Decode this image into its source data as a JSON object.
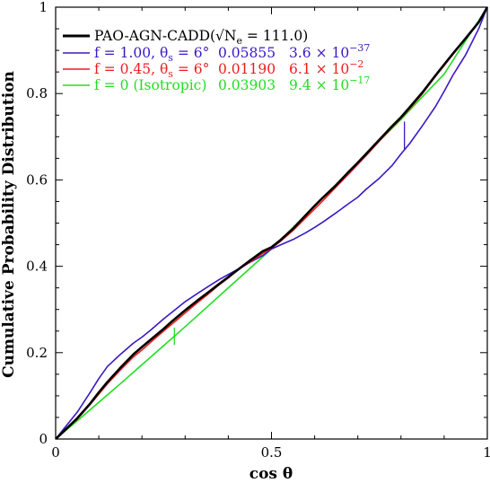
{
  "chart_data": {
    "type": "line",
    "xlabel": "cos θ",
    "ylabel": "Cumulative Probability Distribution",
    "xlim": [
      0,
      1
    ],
    "ylim": [
      0,
      1
    ],
    "x_ticks": [
      "0",
      "0.5",
      "1"
    ],
    "y_ticks": [
      "0",
      "0.2",
      "0.4",
      "0.6",
      "0.8",
      "1"
    ],
    "legend_position": "top-left",
    "series": [
      {
        "name": "PAO-AGN-CADD(√Nₑ = 111.0)",
        "label": "PAO-AGN-CADD(√N",
        "label_sub": "e",
        "label_tail": " = 111.0)",
        "col2": "",
        "col3_base": "",
        "col3_exp": "",
        "color": "#000000",
        "x": [
          0,
          0.02,
          0.05,
          0.08,
          0.1,
          0.12,
          0.15,
          0.18,
          0.2,
          0.22,
          0.25,
          0.27,
          0.3,
          0.33,
          0.35,
          0.38,
          0.4,
          0.43,
          0.45,
          0.48,
          0.5,
          0.52,
          0.55,
          0.58,
          0.6,
          0.62,
          0.65,
          0.68,
          0.7,
          0.72,
          0.75,
          0.78,
          0.8,
          0.82,
          0.85,
          0.88,
          0.9,
          0.92,
          0.95,
          0.98,
          1.0
        ],
        "y": [
          0,
          0.019,
          0.048,
          0.082,
          0.108,
          0.132,
          0.165,
          0.196,
          0.213,
          0.23,
          0.255,
          0.273,
          0.298,
          0.322,
          0.337,
          0.36,
          0.375,
          0.398,
          0.413,
          0.435,
          0.444,
          0.46,
          0.487,
          0.519,
          0.54,
          0.56,
          0.588,
          0.62,
          0.64,
          0.661,
          0.693,
          0.725,
          0.745,
          0.768,
          0.803,
          0.842,
          0.867,
          0.892,
          0.928,
          0.965,
          1.0
        ]
      },
      {
        "name": "f = 1.00, θs = 6°",
        "label": "f = 1.00, θ",
        "label_sub": "s",
        "label_tail": " = 6°",
        "col2": "0.05855",
        "col3_base": "3.6 × 10",
        "col3_exp": "−37",
        "color": "#3a19c4",
        "x": [
          0,
          0.02,
          0.05,
          0.08,
          0.1,
          0.12,
          0.15,
          0.18,
          0.2,
          0.22,
          0.25,
          0.28,
          0.3,
          0.33,
          0.35,
          0.38,
          0.4,
          0.42,
          0.45,
          0.48,
          0.5,
          0.52,
          0.55,
          0.58,
          0.6,
          0.62,
          0.65,
          0.68,
          0.7,
          0.72,
          0.75,
          0.78,
          0.8,
          0.82,
          0.85,
          0.88,
          0.9,
          0.92,
          0.95,
          0.98,
          1.0
        ],
        "y": [
          0,
          0.025,
          0.062,
          0.108,
          0.14,
          0.168,
          0.196,
          0.222,
          0.236,
          0.252,
          0.278,
          0.302,
          0.318,
          0.338,
          0.351,
          0.37,
          0.381,
          0.392,
          0.409,
          0.425,
          0.44,
          0.449,
          0.462,
          0.478,
          0.49,
          0.503,
          0.524,
          0.546,
          0.56,
          0.579,
          0.604,
          0.634,
          0.66,
          0.684,
          0.726,
          0.77,
          0.805,
          0.842,
          0.89,
          0.95,
          1.0
        ]
      },
      {
        "name": "f = 0.45, θs = 6°",
        "label": "f = 0.45, θ",
        "label_sub": "s",
        "label_tail": " = 6°",
        "col2": "0.01190",
        "col3_base": "6.1 × 10",
        "col3_exp": "−2",
        "color": "#ee1c1c",
        "x": [
          0,
          0.02,
          0.05,
          0.08,
          0.1,
          0.12,
          0.15,
          0.18,
          0.2,
          0.22,
          0.25,
          0.28,
          0.3,
          0.33,
          0.35,
          0.38,
          0.4,
          0.42,
          0.45,
          0.48,
          0.5,
          0.52,
          0.55,
          0.58,
          0.6,
          0.62,
          0.65,
          0.68,
          0.7,
          0.72,
          0.75,
          0.78,
          0.8,
          0.82,
          0.85,
          0.88,
          0.9,
          0.92,
          0.95,
          0.98,
          1.0
        ],
        "y": [
          0,
          0.018,
          0.046,
          0.08,
          0.104,
          0.128,
          0.16,
          0.19,
          0.206,
          0.224,
          0.25,
          0.275,
          0.292,
          0.317,
          0.333,
          0.358,
          0.373,
          0.39,
          0.41,
          0.43,
          0.442,
          0.457,
          0.483,
          0.513,
          0.533,
          0.553,
          0.584,
          0.615,
          0.636,
          0.657,
          0.69,
          0.722,
          0.742,
          0.765,
          0.8,
          0.84,
          0.865,
          0.89,
          0.928,
          0.965,
          1.0
        ]
      },
      {
        "name": "f = 0 (Isotropic)",
        "label": "f = 0 (Isotropic)",
        "label_sub": "",
        "label_tail": "",
        "col2": "0.03903",
        "col3_base": "9.4 × 10",
        "col3_exp": "−17",
        "color": "#22dd22",
        "x": [
          0,
          0.05,
          0.1,
          0.15,
          0.2,
          0.25,
          0.3,
          0.35,
          0.4,
          0.45,
          0.5,
          0.55,
          0.6,
          0.65,
          0.7,
          0.75,
          0.8,
          0.85,
          0.9,
          0.95,
          1.0
        ],
        "y": [
          0,
          0.042,
          0.085,
          0.128,
          0.172,
          0.216,
          0.26,
          0.305,
          0.35,
          0.395,
          0.44,
          0.49,
          0.54,
          0.59,
          0.64,
          0.69,
          0.74,
          0.793,
          0.845,
          0.923,
          1.0
        ]
      }
    ],
    "annotations": [
      {
        "series": 1,
        "x": 0.808,
        "y_from": 0.671,
        "y_to": 0.735
      },
      {
        "series": 3,
        "x": 0.275,
        "y_from": 0.218,
        "y_to": 0.258
      }
    ]
  }
}
